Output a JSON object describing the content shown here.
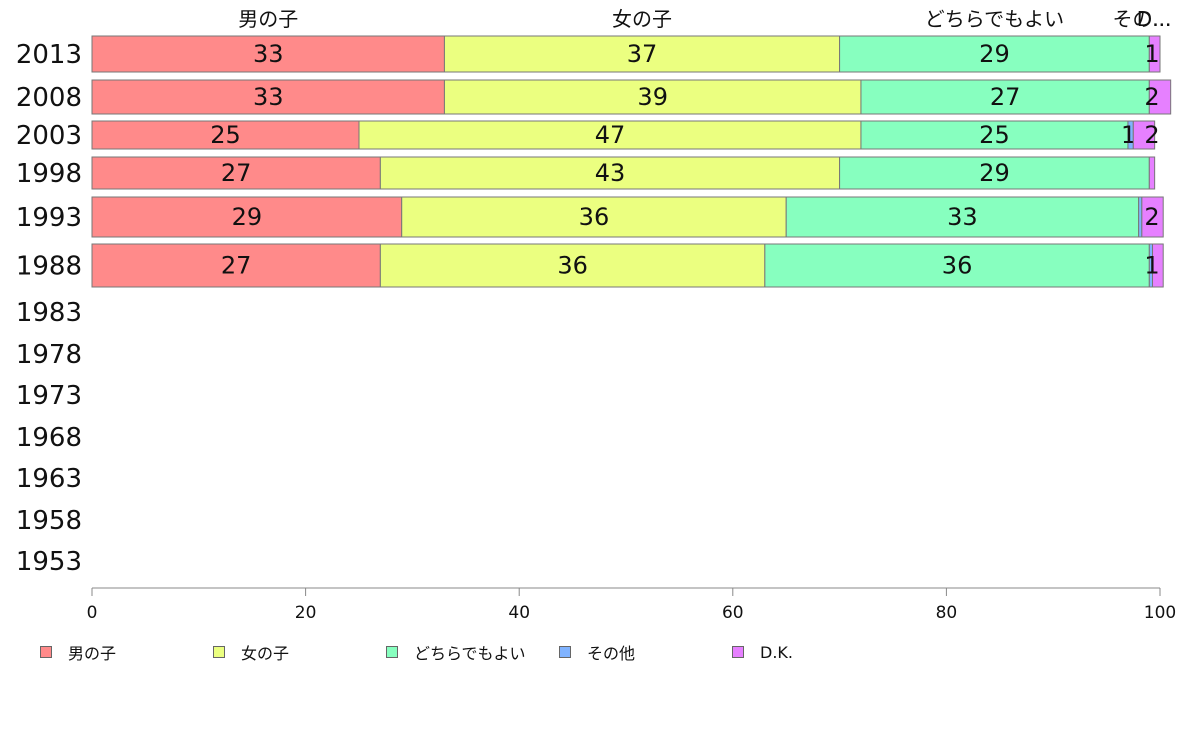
{
  "chart_data": {
    "type": "bar",
    "orientation": "horizontal",
    "stacked": true,
    "categories": [
      "2013",
      "2008",
      "2003",
      "1998",
      "1993",
      "1988",
      "1983",
      "1978",
      "1973",
      "1968",
      "1963",
      "1958",
      "1953"
    ],
    "series": [
      {
        "name": "男の子",
        "color": "#ff8a8a",
        "values": [
          33,
          33,
          25,
          27,
          29,
          27,
          null,
          null,
          null,
          null,
          null,
          null,
          null
        ]
      },
      {
        "name": "女の子",
        "color": "#ebff80",
        "values": [
          37,
          39,
          47,
          43,
          36,
          36,
          null,
          null,
          null,
          null,
          null,
          null,
          null
        ]
      },
      {
        "name": "どちらでもよい",
        "color": "#87ffbf",
        "values": [
          29,
          27,
          25,
          29,
          33,
          36,
          null,
          null,
          null,
          null,
          null,
          null,
          null
        ]
      },
      {
        "name": "その他",
        "color": "#80b3ff",
        "values": [
          0,
          0,
          0.5,
          0,
          0.3,
          0.3,
          null,
          null,
          null,
          null,
          null,
          null,
          null
        ]
      },
      {
        "name": "D.K.",
        "color": "#e680ff",
        "values": [
          1,
          2,
          2,
          0.5,
          2,
          1,
          null,
          null,
          null,
          null,
          null,
          null,
          null
        ]
      }
    ],
    "segment_labels": [
      [
        "33",
        "37",
        "29",
        "",
        "1"
      ],
      [
        "33",
        "39",
        "27",
        "",
        "2"
      ],
      [
        "25",
        "47",
        "25",
        "1",
        "2"
      ],
      [
        "27",
        "43",
        "29",
        "",
        ""
      ],
      [
        "29",
        "36",
        "33",
        "",
        "2"
      ],
      [
        "27",
        "36",
        "36",
        "",
        "1"
      ]
    ],
    "header_labels": [
      "男の子",
      "女の子",
      "どちらでもよい",
      "その...",
      "D..."
    ],
    "x_ticks": [
      "0",
      "20",
      "40",
      "60",
      "80",
      "100"
    ],
    "xlim": [
      0,
      100
    ],
    "grid": false,
    "legend_position": "bottom"
  }
}
